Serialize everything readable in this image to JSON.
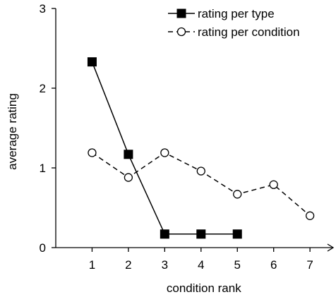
{
  "chart_data": {
    "type": "line",
    "xlabel": "condition rank",
    "ylabel": "average rating",
    "xlim": [
      0,
      7.6
    ],
    "ylim": [
      0,
      3
    ],
    "x_ticks": [
      1,
      2,
      3,
      4,
      5,
      6,
      7
    ],
    "y_ticks": [
      0,
      1,
      2,
      3
    ],
    "grid": false,
    "legend_position": "top-right",
    "series": [
      {
        "name": "rating per type",
        "marker": "filled-square",
        "line_style": "solid",
        "color": "#000000",
        "x": [
          1,
          2,
          3,
          4,
          5
        ],
        "values": [
          2.33,
          1.17,
          0.17,
          0.17,
          0.17
        ]
      },
      {
        "name": "rating per condition",
        "marker": "open-circle",
        "line_style": "dashed",
        "color": "#000000",
        "x": [
          1,
          2,
          3,
          4,
          5,
          6,
          7
        ],
        "values": [
          1.19,
          0.88,
          1.19,
          0.96,
          0.67,
          0.79,
          0.4
        ]
      }
    ]
  }
}
